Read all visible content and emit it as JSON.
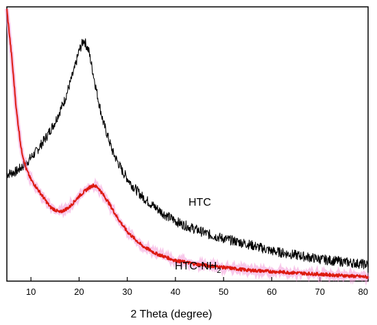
{
  "chart_data": {
    "type": "line",
    "title": "",
    "xlabel": "2 Theta (degree)",
    "ylabel": "",
    "xlim": [
      5,
      80
    ],
    "ylim": [
      0,
      1
    ],
    "xticks": [
      10,
      20,
      30,
      40,
      50,
      60,
      70,
      80
    ],
    "yticks_shown": false,
    "grid": false,
    "series": [
      {
        "name": "HTC",
        "color": "#000000",
        "x": [
          5,
          7,
          9,
          11,
          13,
          15,
          17,
          19,
          20,
          21,
          22,
          23,
          24,
          25,
          27,
          29,
          31,
          33,
          35,
          38,
          41,
          44,
          47,
          50,
          55,
          60,
          65,
          70,
          75,
          80
        ],
        "y": [
          0.39,
          0.4,
          0.43,
          0.47,
          0.52,
          0.58,
          0.66,
          0.77,
          0.84,
          0.88,
          0.84,
          0.75,
          0.66,
          0.58,
          0.47,
          0.4,
          0.35,
          0.31,
          0.28,
          0.24,
          0.21,
          0.19,
          0.17,
          0.155,
          0.135,
          0.11,
          0.095,
          0.08,
          0.07,
          0.06
        ]
      },
      {
        "name": "HTC-NH",
        "label_subscript": "2",
        "color": "#dd1a10",
        "x": [
          5,
          6,
          7,
          8,
          9,
          10,
          12,
          14,
          16,
          18,
          20,
          22,
          23,
          24,
          26,
          28,
          30,
          33,
          36,
          40,
          45,
          50,
          55,
          60,
          70,
          80
        ],
        "y": [
          0.99,
          0.82,
          0.62,
          0.48,
          0.41,
          0.37,
          0.32,
          0.27,
          0.25,
          0.27,
          0.31,
          0.34,
          0.35,
          0.34,
          0.29,
          0.23,
          0.18,
          0.13,
          0.1,
          0.075,
          0.06,
          0.05,
          0.04,
          0.035,
          0.025,
          0.015
        ]
      }
    ]
  }
}
